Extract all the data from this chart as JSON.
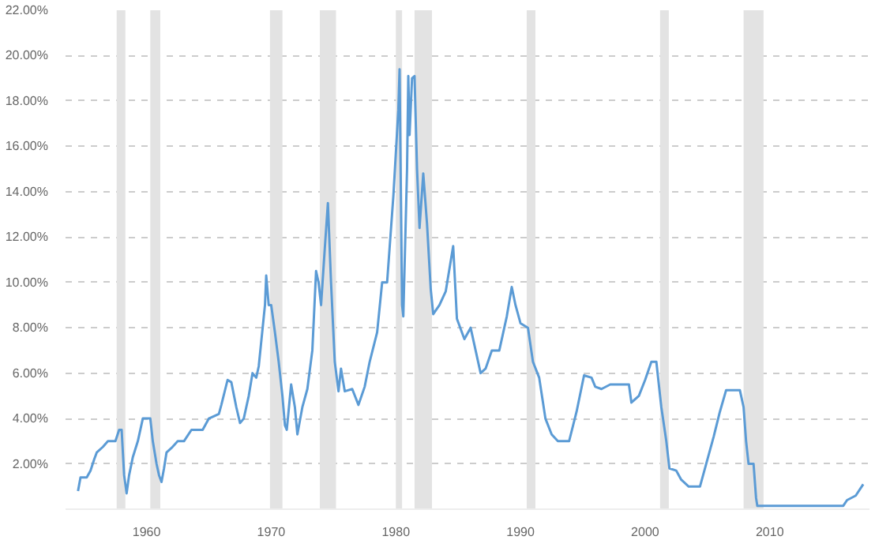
{
  "chart_data": {
    "type": "line",
    "x": [
      1954.5,
      1954.7,
      1955.0,
      1955.2,
      1955.5,
      1955.8,
      1956.0,
      1956.5,
      1956.9,
      1957.5,
      1957.8,
      1958.0,
      1958.2,
      1958.4,
      1958.6,
      1958.9,
      1959.3,
      1959.7,
      1960.3,
      1960.5,
      1960.8,
      1961.0,
      1961.2,
      1961.4,
      1961.6,
      1962.0,
      1962.5,
      1963.0,
      1963.6,
      1964.5,
      1965.0,
      1965.8,
      1966.0,
      1966.5,
      1966.8,
      1967.2,
      1967.5,
      1967.8,
      1968.2,
      1968.5,
      1968.8,
      1969.0,
      1969.5,
      1969.6,
      1969.8,
      1970.0,
      1970.3,
      1970.6,
      1970.9,
      1971.1,
      1971.25,
      1971.6,
      1971.9,
      1972.1,
      1972.5,
      1972.9,
      1973.3,
      1973.6,
      1973.8,
      1974.0,
      1974.3,
      1974.55,
      1974.8,
      1975.1,
      1975.4,
      1975.6,
      1975.9,
      1976.5,
      1977.0,
      1977.5,
      1977.9,
      1978.5,
      1978.9,
      1979.3,
      1979.8,
      1980.2,
      1980.3,
      1980.5,
      1980.6,
      1980.9,
      1981.0,
      1981.1,
      1981.3,
      1981.5,
      1981.7,
      1981.9,
      1982.2,
      1982.5,
      1982.8,
      1983.0,
      1983.5,
      1984.0,
      1984.6,
      1984.9,
      1985.5,
      1986.0,
      1986.8,
      1987.2,
      1987.7,
      1988.3,
      1988.9,
      1989.3,
      1989.6,
      1990.0,
      1990.6,
      1991.0,
      1991.5,
      1992.0,
      1992.5,
      1993.0,
      1993.9,
      1994.5,
      1995.1,
      1995.7,
      1996.0,
      1996.5,
      1997.2,
      1998.0,
      1998.7,
      1998.9,
      1999.5,
      2000.0,
      2000.5,
      2000.9,
      2001.3,
      2001.7,
      2001.95,
      2002.5,
      2002.9,
      2003.5,
      2004.4,
      2004.9,
      2005.5,
      2006.0,
      2006.5,
      2007.6,
      2007.9,
      2008.1,
      2008.3,
      2008.7,
      2008.9,
      2009.0,
      2015.9,
      2016.2,
      2016.9,
      2017.5
    ],
    "series": [
      {
        "color": "#5b9bd5",
        "values": [
          0.8,
          1.4,
          1.4,
          1.4,
          1.7,
          2.2,
          2.5,
          2.75,
          3.0,
          3.0,
          3.5,
          3.5,
          1.5,
          0.7,
          1.5,
          2.3,
          3.0,
          4.0,
          4.0,
          3.0,
          2.0,
          1.5,
          1.2,
          1.8,
          2.5,
          2.7,
          3.0,
          3.0,
          3.5,
          3.5,
          4.0,
          4.2,
          4.6,
          5.7,
          5.6,
          4.5,
          3.8,
          4.0,
          5.0,
          6.0,
          5.8,
          6.3,
          9.0,
          10.3,
          9.0,
          9.0,
          7.8,
          6.5,
          5.0,
          3.7,
          3.5,
          5.5,
          4.5,
          3.3,
          4.5,
          5.3,
          7.0,
          10.5,
          10.0,
          9.0,
          11.5,
          13.5,
          10.0,
          6.5,
          5.2,
          6.2,
          5.2,
          5.3,
          4.6,
          5.4,
          6.5,
          7.8,
          10.0,
          10.0,
          13.8,
          17.6,
          19.4,
          9.0,
          8.5,
          15.0,
          19.1,
          16.5,
          19.0,
          19.1,
          15.0,
          12.4,
          14.8,
          12.6,
          9.7,
          8.6,
          9.0,
          9.6,
          11.6,
          8.4,
          7.5,
          8.0,
          6.0,
          6.2,
          7.0,
          7.0,
          8.5,
          9.8,
          9.0,
          8.2,
          8.0,
          6.5,
          5.8,
          4.0,
          3.3,
          3.0,
          3.0,
          4.3,
          5.9,
          5.8,
          5.4,
          5.3,
          5.5,
          5.5,
          5.5,
          4.7,
          5.0,
          5.7,
          6.5,
          6.5,
          4.5,
          3.0,
          1.8,
          1.7,
          1.3,
          1.0,
          1.0,
          2.0,
          3.2,
          4.3,
          5.25,
          5.25,
          4.5,
          3.0,
          2.0,
          2.0,
          0.5,
          0.15,
          0.15,
          0.4,
          0.6,
          1.1
        ]
      }
    ],
    "xlim": [
      1953.5,
      2018
    ],
    "xticks": [
      1960,
      1970,
      1980,
      1990,
      2000,
      2010
    ],
    "ylim": [
      0,
      22
    ],
    "yticks": [
      {
        "value": 0,
        "label": null
      },
      {
        "value": 2,
        "label": "2.00%"
      },
      {
        "value": 4,
        "label": "4.00%"
      },
      {
        "value": 6,
        "label": "6.00%"
      },
      {
        "value": 8,
        "label": "8.00%"
      },
      {
        "value": 10,
        "label": "10.00%"
      },
      {
        "value": 12,
        "label": "12.00%"
      },
      {
        "value": 14,
        "label": "14.00%"
      },
      {
        "value": 16,
        "label": "16.00%"
      },
      {
        "value": 18,
        "label": "18.00%"
      },
      {
        "value": 20,
        "label": "20.00%"
      },
      {
        "value": 22,
        "label": "22.00%"
      }
    ],
    "grid": "y",
    "line_style": "solid",
    "bands": [
      {
        "axis": "x",
        "from": 1957.6,
        "to": 1958.3,
        "color": "#e3e3e3"
      },
      {
        "axis": "x",
        "from": 1960.3,
        "to": 1961.1,
        "color": "#e3e3e3"
      },
      {
        "axis": "x",
        "from": 1969.9,
        "to": 1970.9,
        "color": "#e3e3e3"
      },
      {
        "axis": "x",
        "from": 1973.9,
        "to": 1975.2,
        "color": "#e3e3e3"
      },
      {
        "axis": "x",
        "from": 1980.0,
        "to": 1980.5,
        "color": "#e3e3e3"
      },
      {
        "axis": "x",
        "from": 1981.5,
        "to": 1982.9,
        "color": "#e3e3e3"
      },
      {
        "axis": "x",
        "from": 1990.5,
        "to": 1991.2,
        "color": "#e3e3e3"
      },
      {
        "axis": "x",
        "from": 2001.2,
        "to": 2001.9,
        "color": "#e3e3e3"
      },
      {
        "axis": "x",
        "from": 2007.9,
        "to": 2009.5,
        "color": "#e3e3e3"
      }
    ]
  }
}
